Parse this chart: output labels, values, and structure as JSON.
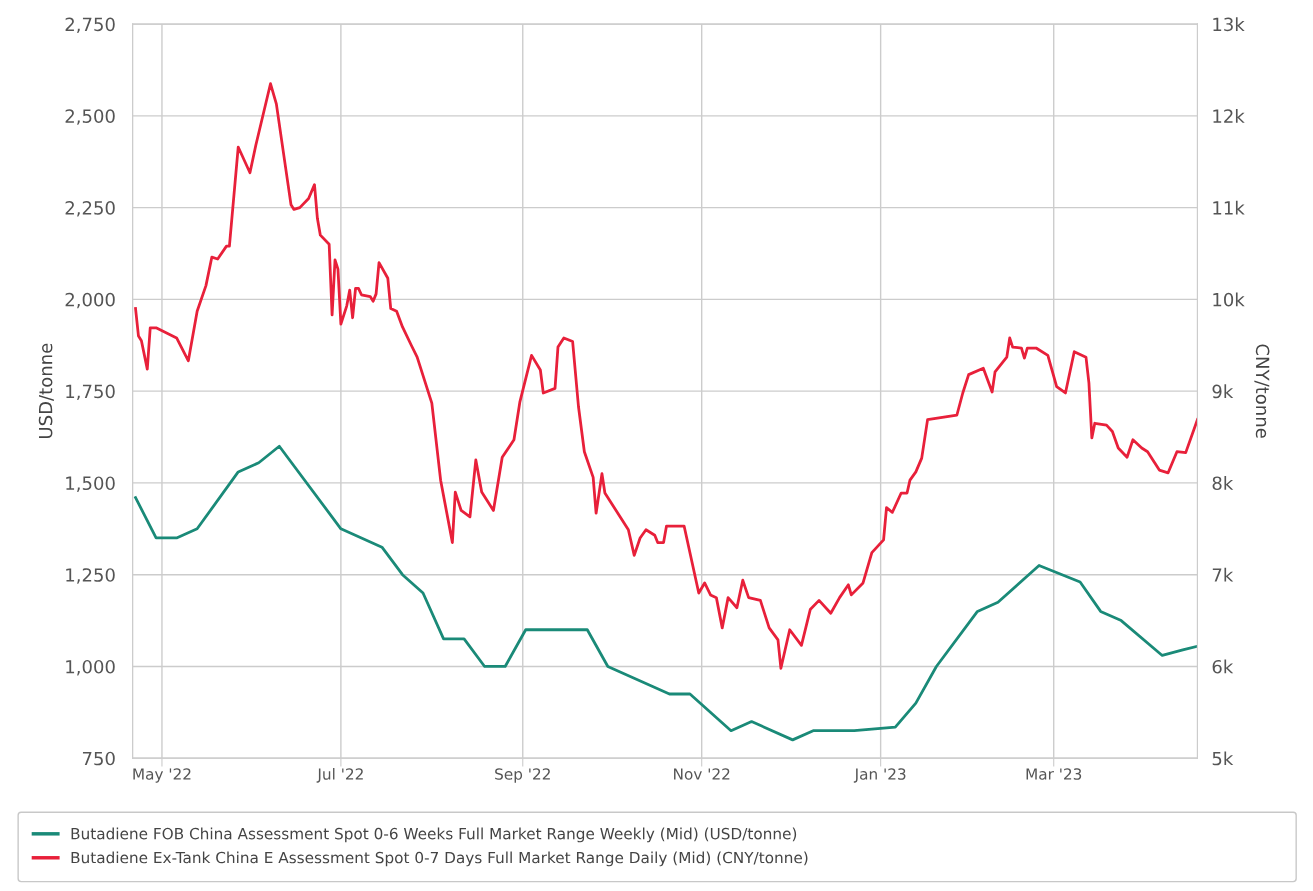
{
  "chart_data": {
    "type": "line",
    "ylabel": "USD/tonne",
    "y2label": "CNY/tonne",
    "xlim": [
      "2022-04-21",
      "2023-04-19"
    ],
    "xticks": [
      {
        "value": "2022-05-01",
        "label": "May '22"
      },
      {
        "value": "2022-07-01",
        "label": "Jul '22"
      },
      {
        "value": "2022-09-01",
        "label": "Sep '22"
      },
      {
        "value": "2022-11-01",
        "label": "Nov '22"
      },
      {
        "value": "2023-01-01",
        "label": "Jan '23"
      },
      {
        "value": "2023-03-01",
        "label": "Mar '23"
      }
    ],
    "ylim": [
      750,
      2750
    ],
    "yticks": [
      {
        "value": 750,
        "label": "750"
      },
      {
        "value": 1000,
        "label": "1,000"
      },
      {
        "value": 1250,
        "label": "1,250"
      },
      {
        "value": 1500,
        "label": "1,500"
      },
      {
        "value": 1750,
        "label": "1,750"
      },
      {
        "value": 2000,
        "label": "2,000"
      },
      {
        "value": 2250,
        "label": "2,250"
      },
      {
        "value": 2500,
        "label": "2,500"
      },
      {
        "value": 2750,
        "label": "2,750"
      }
    ],
    "y2lim": [
      5000,
      13000
    ],
    "y2ticks": [
      {
        "value": 5000,
        "label": "5k"
      },
      {
        "value": 6000,
        "label": "6k"
      },
      {
        "value": 7000,
        "label": "7k"
      },
      {
        "value": 8000,
        "label": "8k"
      },
      {
        "value": 9000,
        "label": "9k"
      },
      {
        "value": 10000,
        "label": "10k"
      },
      {
        "value": 11000,
        "label": "11k"
      },
      {
        "value": 12000,
        "label": "12k"
      },
      {
        "value": 13000,
        "label": "13k"
      }
    ],
    "grid": true,
    "legend": "bottom",
    "line_style": "solid",
    "series": [
      {
        "name": "Butadiene FOB China Assessment Spot 0-6 Weeks Full Market Range Weekly (Mid) (USD/tonne)",
        "color": "#1a8a78",
        "x": [
          "2022-04-22",
          "2022-04-29",
          "2022-05-06",
          "2022-05-13",
          "2022-05-27",
          "2022-06-03",
          "2022-06-10",
          "2022-07-01",
          "2022-07-15",
          "2022-07-22",
          "2022-07-29",
          "2022-08-05",
          "2022-08-12",
          "2022-08-19",
          "2022-08-26",
          "2022-09-02",
          "2022-09-23",
          "2022-09-30",
          "2022-10-21",
          "2022-10-28",
          "2022-11-11",
          "2022-11-18",
          "2022-12-02",
          "2022-12-09",
          "2022-12-23",
          "2023-01-06",
          "2023-01-13",
          "2023-01-20",
          "2023-02-03",
          "2023-02-10",
          "2023-02-24",
          "2023-03-10",
          "2023-03-17",
          "2023-03-24",
          "2023-04-07",
          "2023-04-14",
          "2023-04-19"
        ],
        "values": [
          1460,
          1350,
          1350,
          1375,
          1530,
          1555,
          1600,
          1375,
          1325,
          1250,
          1200,
          1075,
          1075,
          1000,
          1000,
          1100,
          1100,
          1000,
          925,
          925,
          825,
          850,
          800,
          825,
          825,
          835,
          900,
          1000,
          1150,
          1175,
          1275,
          1230,
          1150,
          1125,
          1030,
          1045,
          1055
        ]
      },
      {
        "name": "Butadiene Ex-Tank China E Assessment Spot 0-7 Days Full Market Range Daily (Mid) (CNY/tonne)",
        "color": "#e8203a",
        "axis": "y2",
        "x": [
          "2022-04-22",
          "2022-04-23",
          "2022-04-24",
          "2022-04-26",
          "2022-04-27",
          "2022-04-29",
          "2022-05-06",
          "2022-05-10",
          "2022-05-13",
          "2022-05-16",
          "2022-05-18",
          "2022-05-20",
          "2022-05-23",
          "2022-05-24",
          "2022-05-27",
          "2022-05-31",
          "2022-06-02",
          "2022-06-07",
          "2022-06-09",
          "2022-06-14",
          "2022-06-15",
          "2022-06-17",
          "2022-06-20",
          "2022-06-22",
          "2022-06-23",
          "2022-06-24",
          "2022-06-27",
          "2022-06-28",
          "2022-06-29",
          "2022-06-30",
          "2022-07-01",
          "2022-07-03",
          "2022-07-04",
          "2022-07-05",
          "2022-07-06",
          "2022-07-07",
          "2022-07-08",
          "2022-07-11",
          "2022-07-12",
          "2022-07-13",
          "2022-07-14",
          "2022-07-17",
          "2022-07-18",
          "2022-07-20",
          "2022-07-22",
          "2022-07-25",
          "2022-07-27",
          "2022-08-01",
          "2022-08-04",
          "2022-08-08",
          "2022-08-09",
          "2022-08-11",
          "2022-08-14",
          "2022-08-16",
          "2022-08-18",
          "2022-08-22",
          "2022-08-25",
          "2022-08-29",
          "2022-08-31",
          "2022-09-04",
          "2022-09-07",
          "2022-09-08",
          "2022-09-12",
          "2022-09-13",
          "2022-09-15",
          "2022-09-18",
          "2022-09-20",
          "2022-09-22",
          "2022-09-25",
          "2022-09-26",
          "2022-09-28",
          "2022-09-29",
          "2022-10-07",
          "2022-10-09",
          "2022-10-11",
          "2022-10-13",
          "2022-10-16",
          "2022-10-17",
          "2022-10-19",
          "2022-10-20",
          "2022-10-26",
          "2022-10-31",
          "2022-11-02",
          "2022-11-04",
          "2022-11-06",
          "2022-11-08",
          "2022-11-10",
          "2022-11-13",
          "2022-11-15",
          "2022-11-17",
          "2022-11-21",
          "2022-11-24",
          "2022-11-27",
          "2022-11-28",
          "2022-12-01",
          "2022-12-05",
          "2022-12-08",
          "2022-12-11",
          "2022-12-15",
          "2022-12-18",
          "2022-12-21",
          "2022-12-22",
          "2022-12-26",
          "2022-12-29",
          "2023-01-02",
          "2023-01-03",
          "2023-01-05",
          "2023-01-08",
          "2023-01-10",
          "2023-01-11",
          "2023-01-13",
          "2023-01-15",
          "2023-01-17",
          "2023-01-27",
          "2023-01-29",
          "2023-01-31",
          "2023-02-05",
          "2023-02-08",
          "2023-02-09",
          "2023-02-13",
          "2023-02-14",
          "2023-02-15",
          "2023-02-18",
          "2023-02-19",
          "2023-02-20",
          "2023-02-23",
          "2023-02-27",
          "2023-03-02",
          "2023-03-05",
          "2023-03-08",
          "2023-03-12",
          "2023-03-13",
          "2023-03-14",
          "2023-03-15",
          "2023-03-19",
          "2023-03-21",
          "2023-03-23",
          "2023-03-26",
          "2023-03-28",
          "2023-03-31",
          "2023-04-02",
          "2023-04-06",
          "2023-04-09",
          "2023-04-12",
          "2023-04-15",
          "2023-04-19"
        ],
        "values": [
          9900,
          9600,
          9550,
          9240,
          9690,
          9690,
          9580,
          9330,
          9870,
          10150,
          10460,
          10440,
          10580,
          10580,
          11660,
          11380,
          11680,
          12350,
          12130,
          11030,
          10980,
          11000,
          11100,
          11250,
          10880,
          10700,
          10600,
          9830,
          10430,
          10330,
          9730,
          9930,
          10100,
          9800,
          10120,
          10120,
          10050,
          10030,
          9980,
          10060,
          10400,
          10230,
          9900,
          9870,
          9700,
          9500,
          9370,
          8870,
          8030,
          7350,
          7900,
          7700,
          7630,
          8250,
          7900,
          7700,
          8280,
          8470,
          8880,
          9390,
          9230,
          8980,
          9030,
          9480,
          9580,
          9540,
          8830,
          8340,
          8060,
          7670,
          8100,
          7890,
          7490,
          7210,
          7400,
          7490,
          7430,
          7350,
          7350,
          7530,
          7530,
          6800,
          6910,
          6780,
          6750,
          6420,
          6750,
          6640,
          6940,
          6750,
          6720,
          6420,
          6290,
          5980,
          6400,
          6230,
          6620,
          6720,
          6580,
          6750,
          6890,
          6780,
          6910,
          7240,
          7380,
          7730,
          7680,
          7890,
          7890,
          8030,
          8120,
          8270,
          8690,
          8740,
          8980,
          9180,
          9250,
          8990,
          9210,
          9370,
          9580,
          9480,
          9470,
          9360,
          9470,
          9470,
          9390,
          9050,
          8980,
          9430,
          9370,
          9090,
          8490,
          8650,
          8630,
          8560,
          8380,
          8280,
          8470,
          8380,
          8340,
          8140,
          8110,
          8340,
          8330,
          8690
        ]
      }
    ]
  }
}
